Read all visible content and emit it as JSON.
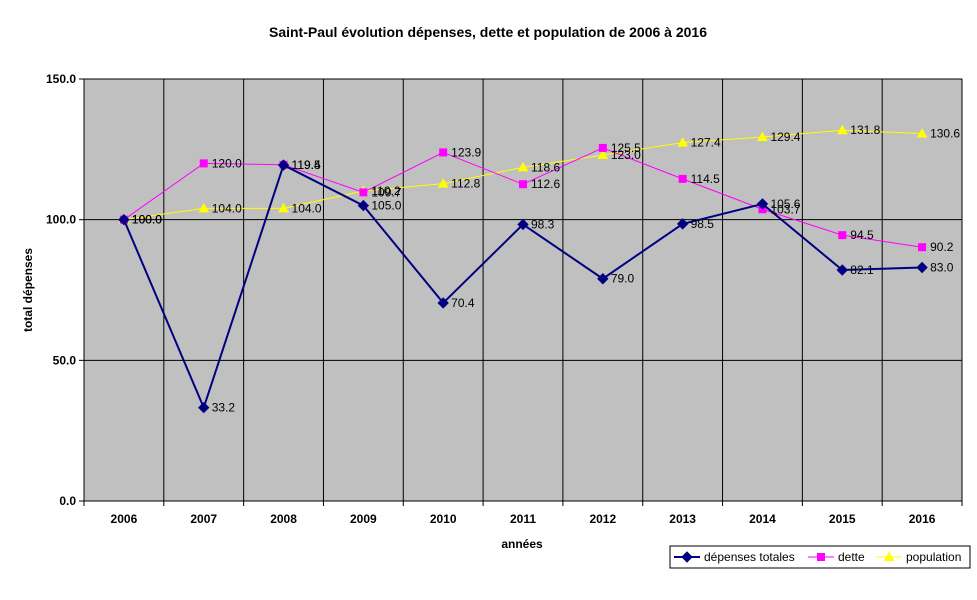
{
  "chart_data": {
    "type": "line",
    "title": "Saint-Paul évolution dépenses, dette et population de 2006 à 2016",
    "xlabel": "années",
    "ylabel": "total dépenses",
    "categories": [
      "2006",
      "2007",
      "2008",
      "2009",
      "2010",
      "2011",
      "2012",
      "2013",
      "2014",
      "2015",
      "2016"
    ],
    "ylim": [
      0,
      150
    ],
    "yticks": [
      0,
      50,
      100,
      150
    ],
    "ytick_labels": [
      "0.0",
      "50.0",
      "100.0",
      "150.0"
    ],
    "grid": true,
    "plot_background": "#c0c0c0",
    "legend_position": "bottom-right",
    "series": [
      {
        "name": "dépenses totales",
        "color": "#000080",
        "marker": "diamond",
        "values": [
          100.0,
          33.2,
          119.4,
          105.0,
          70.4,
          98.3,
          79.0,
          98.5,
          105.6,
          82.1,
          83.0
        ],
        "labels": [
          "100.0",
          "33.2",
          "119.4",
          "105.0",
          "70.4",
          "98.3",
          "79.0",
          "98.5",
          "105.6",
          "82.1",
          "83.0"
        ]
      },
      {
        "name": "dette",
        "color": "#ff00ff",
        "marker": "square",
        "values": [
          100.0,
          120.0,
          119.5,
          109.7,
          123.9,
          112.6,
          125.5,
          114.5,
          103.7,
          94.5,
          90.2
        ],
        "labels": [
          "100.0",
          "120.0",
          "119.5",
          "109.7",
          "123.9",
          "112.6",
          "125.5",
          "114.5",
          "103.7",
          "94.5",
          "90.2"
        ]
      },
      {
        "name": "population",
        "color": "#ffff00",
        "marker": "triangle",
        "values": [
          100.0,
          104.0,
          104.0,
          110.2,
          112.8,
          118.6,
          123.0,
          127.4,
          129.4,
          131.8,
          130.6
        ],
        "labels": [
          "100.0",
          "104.0",
          "104.0",
          "110.2",
          "112.8",
          "118.6",
          "123.0",
          "127.4",
          "129.4",
          "131.8",
          "130.6"
        ]
      }
    ]
  }
}
